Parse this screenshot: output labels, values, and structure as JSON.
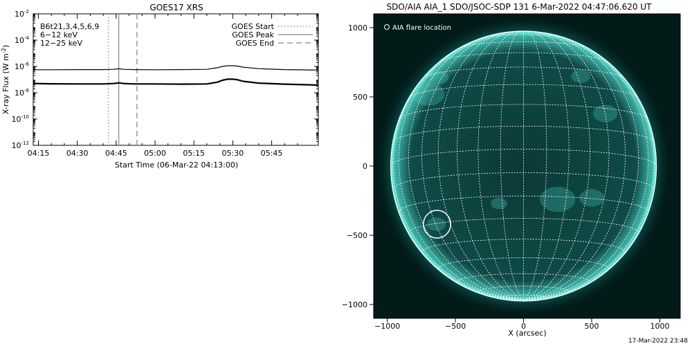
{
  "chart_data": [
    {
      "type": "line",
      "title": "GOES17 XRS",
      "ylabel": "X-ray Flux (W m",
      "ylabel_sup": "-2",
      "ylabel_close": ")",
      "xlabel": "Start Time (06-Mar-22 04:13:00)",
      "y_log": true,
      "ylim_exp": [
        -12,
        -2
      ],
      "y_ticks": [
        {
          "base": "10",
          "exp": "-2"
        },
        {
          "base": "10",
          "exp": "-4"
        },
        {
          "base": "10",
          "exp": "-6"
        },
        {
          "base": "10",
          "exp": "-8"
        },
        {
          "base": "10",
          "exp": "-10"
        },
        {
          "base": "10",
          "exp": "-12"
        }
      ],
      "xlim_min": [
        13,
        123
      ],
      "x_ticks": [
        "04:15",
        "04:30",
        "04:45",
        "05:00",
        "05:15",
        "05:30",
        "05:45"
      ],
      "x_ticks_min": [
        15,
        30,
        45,
        60,
        75,
        90,
        105
      ],
      "legend_left": [
        {
          "text": "B6t21,3,4,5,6,9",
          "color": "#000000"
        },
        {
          "text": "6−12 keV",
          "color": "#cc00cc"
        },
        {
          "text": "12−25 keV",
          "color": "#00cc00"
        }
      ],
      "legend_right": [
        {
          "text": "GOES Start",
          "style": "dotted"
        },
        {
          "text": "GOES Peak",
          "style": "solid"
        },
        {
          "text": "GOES End",
          "style": "dashed"
        }
      ],
      "markers_min": {
        "start": 42,
        "peak": 46,
        "end": 53
      },
      "series": [
        {
          "key": "long",
          "x": [
            13,
            20,
            30,
            40,
            44,
            46,
            48,
            52,
            60,
            70,
            80,
            84,
            86,
            88,
            90,
            92,
            94,
            100,
            110,
            120,
            123
          ],
          "y_exp": [
            -6.25,
            -6.25,
            -6.24,
            -6.24,
            -6.22,
            -6.18,
            -6.22,
            -6.24,
            -6.25,
            -6.24,
            -6.22,
            -6.1,
            -6.0,
            -5.95,
            -5.95,
            -5.98,
            -6.06,
            -6.17,
            -6.24,
            -6.27,
            -6.28
          ]
        },
        {
          "key": "short",
          "x": [
            13,
            20,
            30,
            40,
            44,
            46,
            48,
            52,
            60,
            70,
            80,
            84,
            86,
            88,
            90,
            92,
            94,
            100,
            110,
            120,
            123
          ],
          "y_exp": [
            -7.3,
            -7.32,
            -7.33,
            -7.33,
            -7.3,
            -7.25,
            -7.3,
            -7.33,
            -7.33,
            -7.35,
            -7.33,
            -7.2,
            -7.05,
            -6.97,
            -6.97,
            -7.02,
            -7.13,
            -7.27,
            -7.35,
            -7.4,
            -7.42
          ]
        }
      ]
    },
    {
      "type": "image",
      "title": "SDO/AIA AIA_1 SDO/JSOC-SDP 131  6-Mar-2022 04:47:06.620 UT",
      "xlabel": "X (arcsec)",
      "xlim": [
        -1100,
        1150
      ],
      "ylim": [
        -1100,
        1100
      ],
      "x_ticks": [
        -1000,
        -500,
        0,
        500,
        1000
      ],
      "y_ticks": [
        -1000,
        -500,
        0,
        500,
        1000
      ],
      "legend": "AIA flare location",
      "flare_location": {
        "x": -635,
        "y": -420,
        "r": 100
      },
      "disk_radius_arcsec": 975,
      "grid_step_deg": 10,
      "colors": {
        "sky": "#021a18",
        "limb": "#7ff3e6",
        "disk": "#0f4a46",
        "grid": "#ffffff"
      }
    }
  ],
  "footer": "17-Mar-2022 23:48"
}
